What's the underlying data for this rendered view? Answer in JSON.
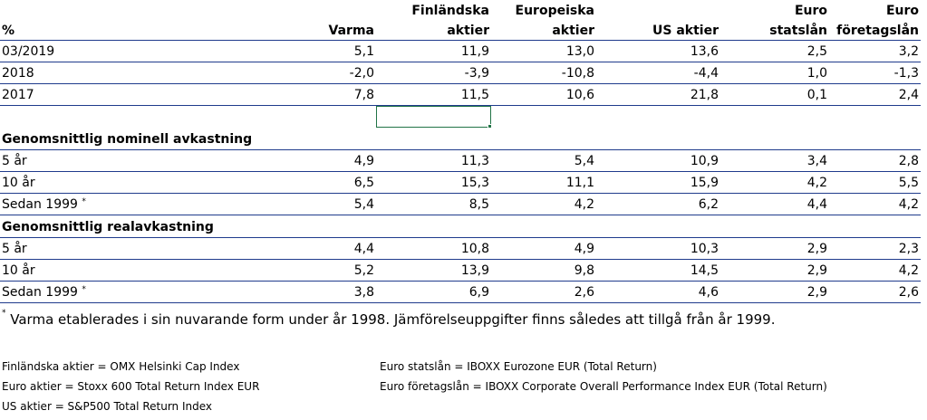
{
  "headers": {
    "line1": [
      "",
      "",
      "Finländska",
      "Europeiska",
      "",
      "Euro",
      "Euro"
    ],
    "line2": [
      "%",
      "Varma",
      "aktier",
      "aktier",
      "US aktier",
      "statslån",
      "företagslån"
    ]
  },
  "annual": [
    {
      "label": "03/2019",
      "values": [
        "5,1",
        "11,9",
        "13,0",
        "13,6",
        "2,5",
        "3,2"
      ]
    },
    {
      "label": "2018",
      "values": [
        "-2,0",
        "-3,9",
        "-10,8",
        "-4,4",
        "1,0",
        "-1,3"
      ]
    },
    {
      "label": "2017",
      "values": [
        "7,8",
        "11,5",
        "10,6",
        "21,8",
        "0,1",
        "2,4"
      ]
    }
  ],
  "nominal": {
    "title": "Genomsnittlig nominell avkastning",
    "rows": [
      {
        "label": "5 år",
        "values": [
          "4,9",
          "11,3",
          "5,4",
          "10,9",
          "3,4",
          "2,8"
        ]
      },
      {
        "label": "10 år",
        "values": [
          "6,5",
          "15,3",
          "11,1",
          "15,9",
          "4,2",
          "5,5"
        ]
      },
      {
        "label": "Sedan 1999",
        "mark": "*",
        "values": [
          "5,4",
          "8,5",
          "4,2",
          "6,2",
          "4,4",
          "4,2"
        ]
      }
    ]
  },
  "real": {
    "title": "Genomsnittlig realavkastning",
    "rows": [
      {
        "label": "5 år",
        "values": [
          "4,4",
          "10,8",
          "4,9",
          "10,3",
          "2,9",
          "2,3"
        ]
      },
      {
        "label": "10 år",
        "values": [
          "5,2",
          "13,9",
          "9,8",
          "14,5",
          "2,9",
          "4,2"
        ]
      },
      {
        "label": "Sedan 1999",
        "mark": "*",
        "values": [
          "3,8",
          "6,9",
          "2,6",
          "4,6",
          "2,9",
          "2,6"
        ]
      }
    ]
  },
  "footnote": {
    "mark": "*",
    "text": " Varma etablerades i sin nuvarande form  under år 1998. Jämförelseuppgifter finns således att tillgå från år 1999."
  },
  "legend_left": [
    "Finländska aktier = OMX Helsinki Cap Index",
    "Euro aktier =  Stoxx 600 Total Return Index EUR",
    "US aktier = S&P500 Total Return Index"
  ],
  "legend_right": [
    "Euro statslån = IBOXX Eurozone EUR (Total Return)",
    "Euro företagslån = IBOXX Corporate Overall Performance Index EUR (Total Return)"
  ],
  "colors": {
    "rule": "#1f3b8c",
    "selection": "#217346"
  }
}
